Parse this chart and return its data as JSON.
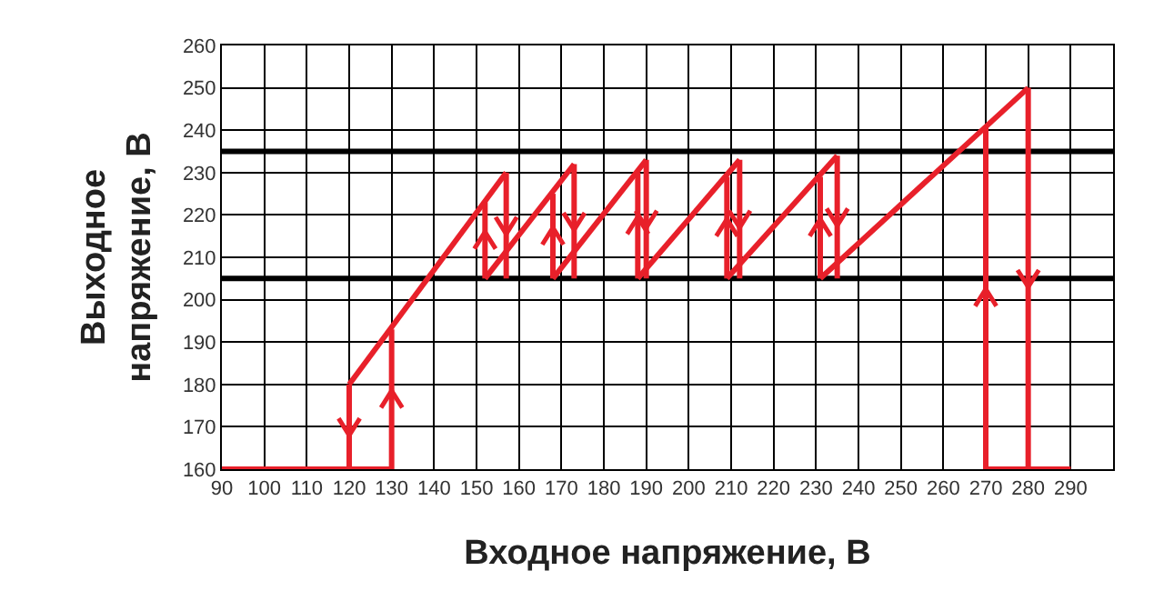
{
  "chart_data": {
    "type": "line",
    "xlabel": "Входное напряжение, В",
    "ylabel": "Выходное\nнапряжение, В",
    "xlim": [
      90,
      300
    ],
    "xticks": [
      90,
      100,
      110,
      120,
      130,
      140,
      150,
      160,
      170,
      180,
      190,
      200,
      210,
      220,
      230,
      240,
      250,
      260,
      270,
      280,
      290
    ],
    "ylim": [
      160,
      260
    ],
    "yticks": [
      160,
      170,
      180,
      190,
      200,
      210,
      220,
      230,
      240,
      250,
      260
    ],
    "grid": true,
    "marker": "none",
    "line_style": "solid",
    "ref_lines": [
      {
        "axis": "y",
        "value": 205,
        "color": "#000000"
      },
      {
        "axis": "y",
        "value": 235,
        "color": "#000000"
      }
    ],
    "series": [
      {
        "color": "#e8202a",
        "x": [
          90,
          130
        ],
        "values": [
          160,
          160
        ]
      },
      {
        "color": "#e8202a",
        "x": [
          120,
          120
        ],
        "values": [
          180,
          160
        ]
      },
      {
        "color": "#e8202a",
        "x": [
          130,
          130
        ],
        "values": [
          160,
          193
        ]
      },
      {
        "color": "#e8202a",
        "x": [
          120,
          157
        ],
        "values": [
          180,
          230
        ]
      },
      {
        "color": "#e8202a",
        "x": [
          152,
          152
        ],
        "values": [
          205,
          223
        ]
      },
      {
        "color": "#e8202a",
        "x": [
          157,
          157
        ],
        "values": [
          230,
          205
        ]
      },
      {
        "color": "#e8202a",
        "x": [
          152,
          173
        ],
        "values": [
          205,
          232
        ]
      },
      {
        "color": "#e8202a",
        "x": [
          168,
          168
        ],
        "values": [
          205,
          225
        ]
      },
      {
        "color": "#e8202a",
        "x": [
          173,
          173
        ],
        "values": [
          232,
          205
        ]
      },
      {
        "color": "#e8202a",
        "x": [
          168,
          190
        ],
        "values": [
          205,
          233
        ]
      },
      {
        "color": "#e8202a",
        "x": [
          188,
          188
        ],
        "values": [
          205,
          230
        ]
      },
      {
        "color": "#e8202a",
        "x": [
          190,
          190
        ],
        "values": [
          233,
          205
        ]
      },
      {
        "color": "#e8202a",
        "x": [
          188,
          212
        ],
        "values": [
          205,
          233
        ]
      },
      {
        "color": "#e8202a",
        "x": [
          209,
          209
        ],
        "values": [
          205,
          229
        ]
      },
      {
        "color": "#e8202a",
        "x": [
          212,
          212
        ],
        "values": [
          233,
          205
        ]
      },
      {
        "color": "#e8202a",
        "x": [
          209,
          235
        ],
        "values": [
          205,
          234
        ]
      },
      {
        "color": "#e8202a",
        "x": [
          231,
          231
        ],
        "values": [
          205,
          229
        ]
      },
      {
        "color": "#e8202a",
        "x": [
          235,
          235
        ],
        "values": [
          234,
          205
        ]
      },
      {
        "color": "#e8202a",
        "x": [
          231,
          280
        ],
        "values": [
          205,
          250
        ]
      },
      {
        "color": "#e8202a",
        "x": [
          270,
          270
        ],
        "values": [
          160,
          241
        ]
      },
      {
        "color": "#e8202a",
        "x": [
          280,
          280
        ],
        "values": [
          250,
          160
        ]
      },
      {
        "color": "#e8202a",
        "x": [
          270,
          290
        ],
        "values": [
          160,
          160
        ]
      }
    ]
  }
}
